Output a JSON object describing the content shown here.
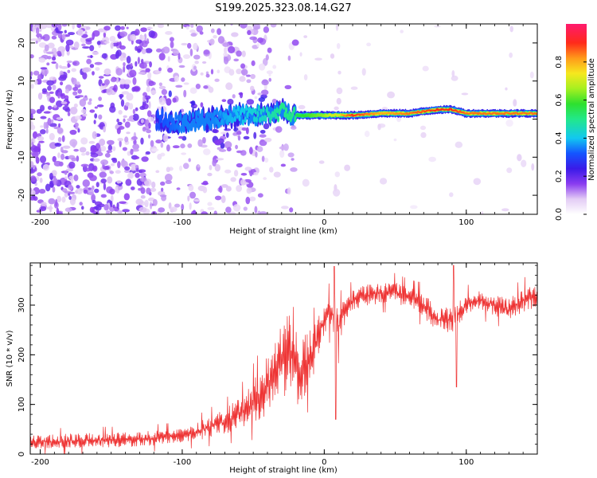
{
  "title": "S199.2025.323.08.14.G27",
  "colors": {
    "snr_line": "#ee3333",
    "axis": "#000000",
    "background": "#ffffff"
  },
  "chart_data": [
    {
      "type": "heatmap",
      "title": "S199.2025.323.08.14.G27",
      "xlabel": "Height of straight line (km)",
      "ylabel": "Frequency (Hz)",
      "xlim": [
        -207,
        150
      ],
      "ylim": [
        -25,
        25
      ],
      "xticks": [
        -200,
        -100,
        0,
        100
      ],
      "xtick_labels": [
        "-200",
        "-100",
        "0",
        "100"
      ],
      "yticks": [
        -20,
        -10,
        0,
        10,
        20
      ],
      "ytick_labels": [
        "-20",
        "-10",
        "0",
        "10",
        "20"
      ],
      "colorbar": {
        "label": "Normalized spectral amplitude",
        "range": [
          0.0,
          1.0
        ],
        "ticks": [
          0.0,
          0.2,
          0.4,
          0.6,
          0.8
        ],
        "tick_labels": [
          "0.0",
          "0.2",
          "0.4",
          "0.6",
          "0.8"
        ]
      },
      "ridge": {
        "description_x": [
          -120,
          -100,
          -80,
          -60,
          -40,
          -30,
          -20,
          -10,
          0,
          20,
          40,
          60,
          80,
          90,
          100,
          120,
          150
        ],
        "frequency_hz": [
          0,
          -1,
          0,
          1,
          1,
          2,
          1,
          1,
          1,
          1,
          1.5,
          1.5,
          2.5,
          2.5,
          1.5,
          1.5,
          1.5
        ],
        "amplitude": [
          0.3,
          0.35,
          0.35,
          0.4,
          0.45,
          0.5,
          0.55,
          0.6,
          0.65,
          0.9,
          0.8,
          0.85,
          0.9,
          0.9,
          0.85,
          0.85,
          0.85
        ]
      }
    },
    {
      "type": "line",
      "xlabel": "Height of straight line (km)",
      "ylabel": "SNR (10 * v/v)",
      "xlim": [
        -207,
        150
      ],
      "ylim": [
        0,
        385
      ],
      "xticks": [
        -200,
        -100,
        0,
        100
      ],
      "xtick_labels": [
        "-200",
        "-100",
        "0",
        "100"
      ],
      "yticks": [
        0,
        100,
        200,
        300
      ],
      "ytick_labels": [
        "0",
        "100",
        "200",
        "300"
      ],
      "series": [
        {
          "name": "SNR",
          "x": [
            -207,
            -190,
            -170,
            -150,
            -130,
            -110,
            -90,
            -70,
            -55,
            -45,
            -35,
            -28,
            -22,
            -18,
            -12,
            -8,
            -4,
            0,
            5,
            10,
            15,
            20,
            30,
            40,
            50,
            60,
            70,
            80,
            90,
            100,
            110,
            120,
            130,
            140,
            150
          ],
          "y": [
            25,
            25,
            28,
            28,
            30,
            35,
            45,
            65,
            90,
            120,
            160,
            190,
            210,
            150,
            190,
            200,
            240,
            270,
            290,
            255,
            290,
            310,
            320,
            325,
            325,
            315,
            300,
            270,
            270,
            300,
            310,
            300,
            290,
            310,
            320
          ],
          "spread": [
            15,
            15,
            15,
            15,
            15,
            15,
            18,
            25,
            35,
            50,
            70,
            80,
            90,
            70,
            60,
            50,
            40,
            30,
            35,
            40,
            25,
            22,
            22,
            22,
            22,
            20,
            25,
            25,
            25,
            22,
            22,
            22,
            22,
            25,
            25
          ]
        }
      ]
    }
  ]
}
